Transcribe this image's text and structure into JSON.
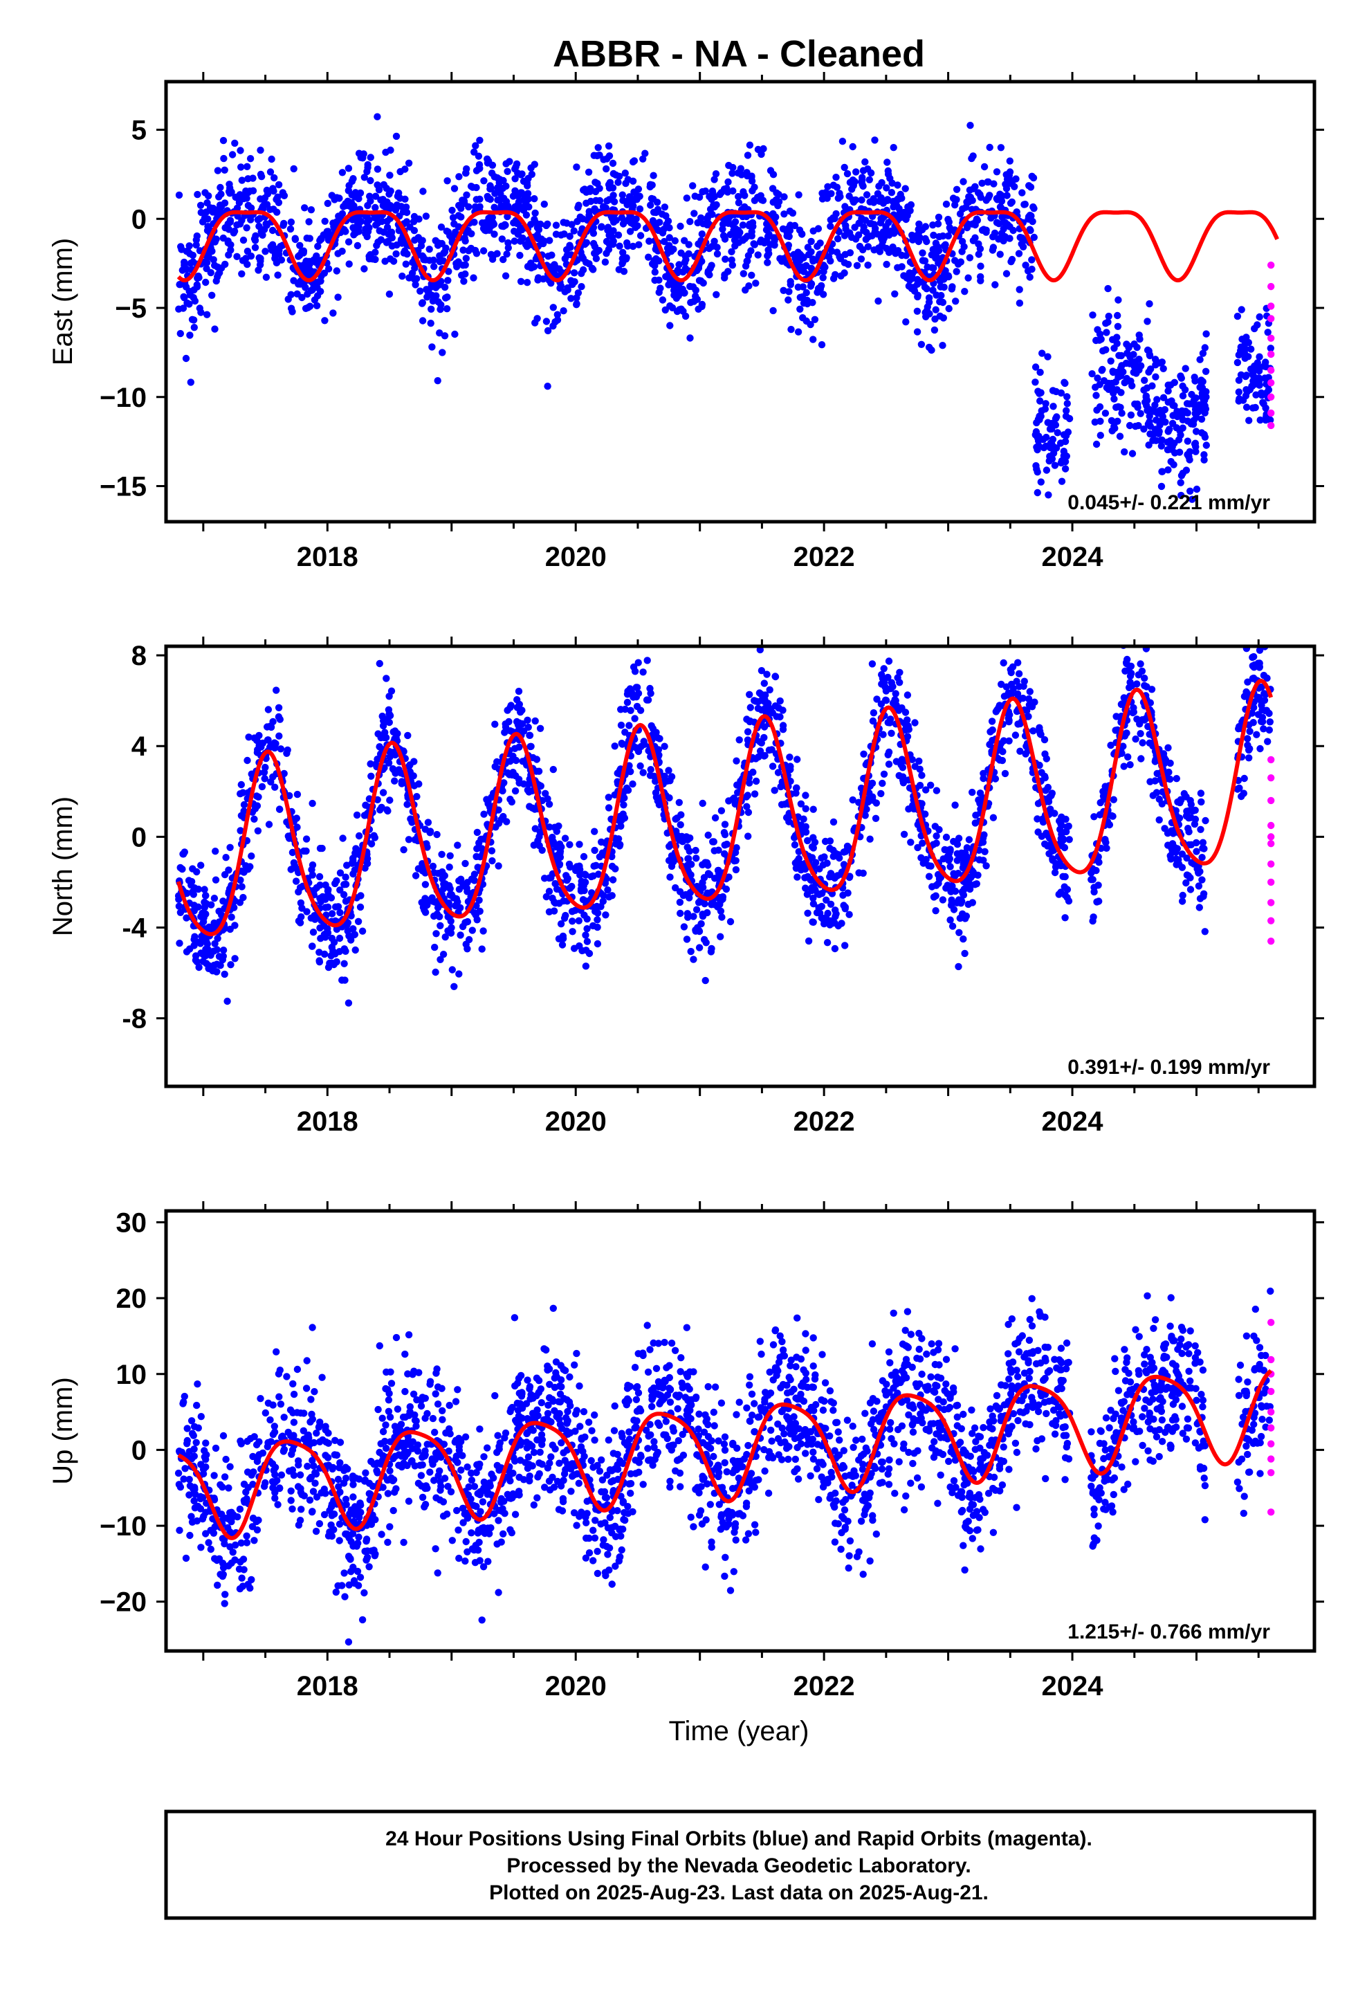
{
  "title": "ABBR  - NA - Cleaned",
  "xlabel": "Time (year)",
  "footer": [
    "24 Hour Positions Using Final Orbits (blue) and Rapid Orbits (magenta).",
    "Processed by the Nevada Geodetic Laboratory.",
    "Plotted on 2025-Aug-23. Last data on 2025-Aug-21."
  ],
  "colors": {
    "final": "#0000ff",
    "rapid": "#ff00ff",
    "model": "#ff0000",
    "axis": "#000000"
  },
  "chart_data": [
    {
      "type": "scatter",
      "id": "east",
      "ylabel": "East (mm)",
      "rate_label": "0.045+/- 0.221 mm/yr",
      "xlim": [
        2016.7,
        2025.95
      ],
      "ylim": [
        -17.0,
        7.7
      ],
      "xticks": [
        2018,
        2020,
        2022,
        2024
      ],
      "xtick_labels": [
        "2018",
        "2020",
        "2022",
        "2024"
      ],
      "yticks": [
        5,
        0,
        -5,
        -10,
        -15
      ],
      "ytick_labels": [
        "5",
        "0",
        "−5",
        "−10",
        "−15"
      ],
      "model": {
        "offset": -1.0,
        "amp1": 1.9,
        "phase1": 0.35,
        "amp2": 0.55,
        "phase2": 0.1,
        "offset_after": -10.0,
        "offset_date": 2023.7,
        "offset_end": 2025.65
      },
      "final_series": {
        "x_start": 2016.8,
        "x_end": 2025.6,
        "noise": 1.7,
        "gaps": [
          [
            2023.98,
            2024.15
          ],
          [
            2025.08,
            2025.33
          ]
        ]
      },
      "rapid_series": {
        "x": [
          2025.6,
          2025.6,
          2025.6,
          2025.6,
          2025.6,
          2025.6,
          2025.6,
          2025.6,
          2025.6,
          2025.6,
          2025.6
        ],
        "y": [
          -2.6,
          -3.8,
          -4.9,
          -5.6,
          -6.7,
          -7.6,
          -8.5,
          -9.2,
          -10.0,
          -10.9,
          -11.6
        ]
      }
    },
    {
      "type": "scatter",
      "id": "north",
      "ylabel": "North (mm)",
      "rate_label": "0.391+/- 0.199 mm/yr",
      "xlim": [
        2016.7,
        2025.95
      ],
      "ylim": [
        -11.0,
        8.4
      ],
      "xticks": [
        2018,
        2020,
        2022,
        2024
      ],
      "xtick_labels": [
        "2018",
        "2020",
        "2022",
        "2024"
      ],
      "yticks": [
        8,
        4,
        0,
        -4,
        -8
      ],
      "ytick_labels": [
        "8",
        "4",
        "0",
        "-4",
        "-8"
      ],
      "model": {
        "offset": -1.0,
        "amp1": 3.9,
        "phase1": 0.53,
        "amp2": 0.6,
        "phase2": 0.0,
        "trend": 0.39,
        "t0": 2016.8
      },
      "final_series": {
        "x_start": 2016.8,
        "x_end": 2025.6,
        "noise": 1.3,
        "gaps": [
          [
            2023.98,
            2024.15
          ],
          [
            2025.08,
            2025.33
          ]
        ]
      },
      "rapid_series": {
        "x": [
          2025.6,
          2025.6,
          2025.6,
          2025.6,
          2025.6,
          2025.6,
          2025.6,
          2025.6,
          2025.6,
          2025.6,
          2025.6
        ],
        "y": [
          3.4,
          2.6,
          1.6,
          0.5,
          0.0,
          -0.3,
          -1.2,
          -2.0,
          -2.9,
          -3.7,
          -4.6
        ]
      }
    },
    {
      "type": "scatter",
      "id": "up",
      "ylabel": "Up (mm)",
      "rate_label": "1.215+/- 0.766 mm/yr",
      "xlim": [
        2016.7,
        2025.95
      ],
      "ylim": [
        -26.5,
        31.5
      ],
      "xticks": [
        2018,
        2020,
        2022,
        2024
      ],
      "xtick_labels": [
        "2018",
        "2020",
        "2022",
        "2024"
      ],
      "yticks": [
        30,
        20,
        10,
        0,
        -10,
        -20
      ],
      "ytick_labels": [
        "30",
        "20",
        "10",
        "0",
        "−10",
        "−20"
      ],
      "model": {
        "offset": -5.0,
        "amp1": 6.0,
        "phase1": 0.72,
        "amp2": 1.2,
        "phase2": 0.0,
        "trend": 1.215,
        "t0": 2016.8
      },
      "final_series": {
        "x_start": 2016.8,
        "x_end": 2025.6,
        "noise": 5.0,
        "gaps": [
          [
            2023.98,
            2024.15
          ],
          [
            2025.08,
            2025.33
          ]
        ]
      },
      "rapid_series": {
        "x": [
          2025.6,
          2025.6,
          2025.6,
          2025.6,
          2025.6,
          2025.6,
          2025.6,
          2025.6,
          2025.6,
          2025.6
        ],
        "y": [
          16.8,
          11.9,
          10.0,
          7.7,
          5.0,
          2.9,
          0.8,
          -1.2,
          -3.0,
          -8.2
        ]
      }
    }
  ]
}
